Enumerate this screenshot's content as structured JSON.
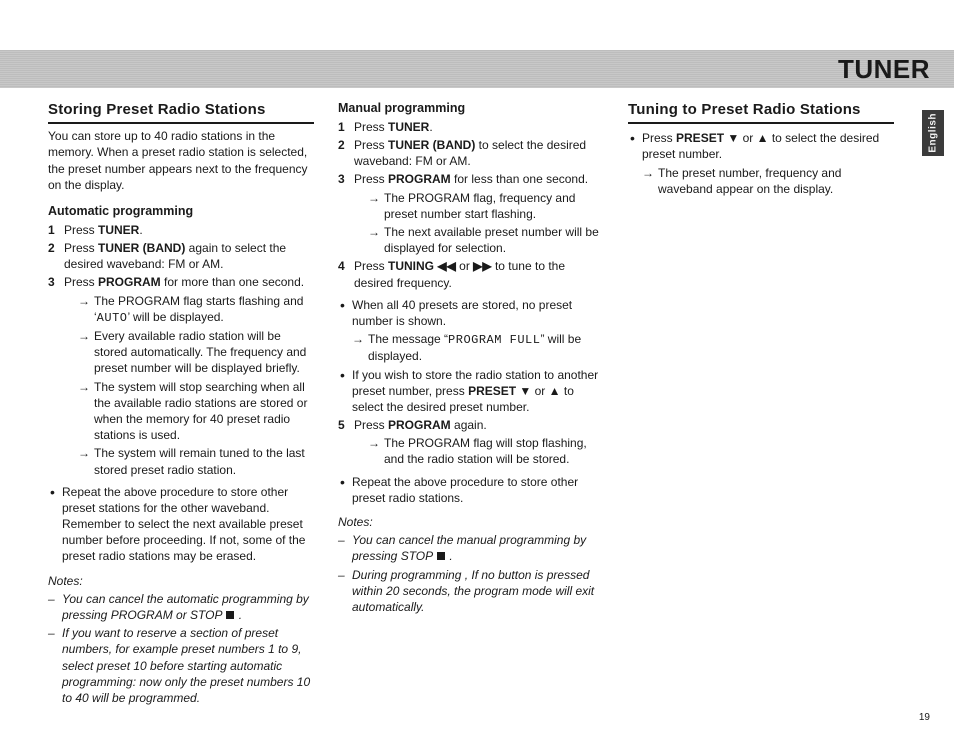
{
  "header": {
    "title": "TUNER",
    "side_tab": "English"
  },
  "page_number": "19",
  "col1": {
    "heading": "Storing Preset Radio Stations",
    "intro": "You can store up to 40 radio stations in the memory. When a preset radio station is selected, the preset number appears next to the frequency on the display.",
    "auto_heading": "Automatic programming",
    "step1_pre": "Press ",
    "step1_b": "TUNER",
    "step1_post": ".",
    "step2_pre": "Press ",
    "step2_b": "TUNER (BAND)",
    "step2_post": " again to select the desired waveband: FM or AM.",
    "step3_pre": "Press ",
    "step3_b": "PROGRAM",
    "step3_post": " for more than one second.",
    "ar1_pre": "The PROGRAM flag starts flashing and ‘",
    "ar1_lcd": "AUTO",
    "ar1_post": "’ will be displayed.",
    "ar2": "Every available radio station will be stored automatically. The frequency and preset number will be displayed briefly.",
    "ar3": "The system will stop searching when all the available radio stations are stored or when the memory for 40 preset radio stations is used.",
    "ar4": "The system will remain tuned to the last stored preset radio station.",
    "bullet1": "Repeat the above procedure to store other preset stations for the other waveband. Remember to select the next available preset number before proceeding. If not, some of the preset radio stations may be erased.",
    "notes_label": "Notes:",
    "note1_pre": "You can cancel the automatic programming by pressing PROGRAM or STOP ",
    "note1_post": " .",
    "note2": "If you want to reserve a section of preset numbers, for example preset numbers 1 to 9, select preset 10 before starting automatic programming: now only the preset numbers 10 to 40 will be programmed."
  },
  "col2": {
    "manual_heading": "Manual programming",
    "step1_pre": "Press ",
    "step1_b": "TUNER",
    "step1_post": ".",
    "step2_pre": "Press ",
    "step2_b": "TUNER (BAND)",
    "step2_post": " to select the desired waveband: FM or AM.",
    "step3_pre": "Press ",
    "step3_b": "PROGRAM",
    "step3_post": " for less than one second.",
    "ar1": "The PROGRAM flag, frequency and preset number start flashing.",
    "ar2": "The next available preset number will be displayed for selection.",
    "step4_pre": "Press ",
    "step4_b": "TUNING ◀◀",
    "step4_mid": " or ",
    "step4_b2": "▶▶",
    "step4_post": " to tune to the desired frequency.",
    "bullet1": "When all 40 presets are stored, no preset number is shown.",
    "bullet1_ar_pre": "The message “",
    "bullet1_ar_lcd": "PROGRAM FULL",
    "bullet1_ar_post": "” will be displayed.",
    "bullet2_pre": "If you wish to store the radio station to another preset number, press ",
    "bullet2_b": "PRESET ▼",
    "bullet2_mid": " or ",
    "bullet2_b2": "▲",
    "bullet2_post": " to select the desired preset number.",
    "step5_pre": "Press ",
    "step5_b": "PROGRAM",
    "step5_post": " again.",
    "ar5": "The PROGRAM flag will stop flashing, and the radio station will be stored.",
    "bullet3": "Repeat the above procedure to store other preset radio stations.",
    "notes_label": "Notes:",
    "note1_pre": "You can cancel the manual programming by pressing STOP ",
    "note1_post": " .",
    "note2": "During programming , If no button is pressed within 20 seconds, the program mode will exit automatically."
  },
  "col3": {
    "heading": "Tuning to Preset Radio Stations",
    "bullet1_pre": "Press ",
    "bullet1_b": "PRESET ▼",
    "bullet1_mid": " or ",
    "bullet1_b2": "▲",
    "bullet1_post": " to select the desired preset number.",
    "ar1": "The preset number, frequency and waveband appear on the display."
  }
}
